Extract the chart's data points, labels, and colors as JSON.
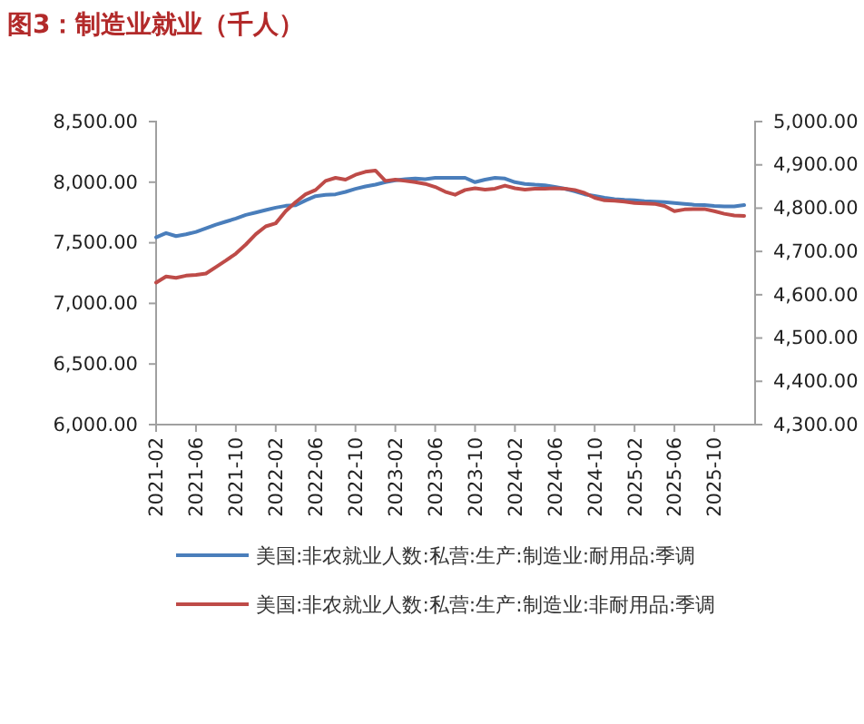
{
  "chart_data": {
    "type": "line",
    "title": "图3：制造业就业（千人）",
    "categories": [
      "2021-02",
      null,
      null,
      null,
      "2021-06",
      null,
      null,
      null,
      "2021-10",
      null,
      null,
      null,
      "2022-02",
      null,
      null,
      null,
      "2022-06",
      null,
      null,
      null,
      "2022-10",
      null,
      null,
      null,
      "2023-02",
      null,
      null,
      null,
      "2023-06",
      null,
      null,
      null,
      "2023-10",
      null,
      null,
      null,
      "2024-02",
      null,
      null,
      null,
      "2024-06",
      null,
      null,
      null,
      "2024-10",
      null,
      null,
      null,
      "2025-02",
      null,
      null,
      null,
      "2025-06",
      null,
      null,
      null,
      "2025-10",
      null,
      null,
      null
    ],
    "series": [
      {
        "name": "美国:非农就业人数:私营:生产:制造业:耐用品:季调",
        "color": "#4a7ebb",
        "values": [
          7545,
          7580,
          7555,
          7570,
          7590,
          7620,
          7650,
          7675,
          7700,
          7730,
          7750,
          7770,
          7790,
          7805,
          7810,
          7850,
          7885,
          7895,
          7900,
          7920,
          7945,
          7965,
          7980,
          8000,
          8015,
          8025,
          8030,
          8025,
          8036,
          8036,
          8036,
          8036,
          8000,
          8021,
          8036,
          8030,
          8000,
          7986,
          7979,
          7975,
          7961,
          7946,
          7925,
          7900,
          7886,
          7871,
          7861,
          7854,
          7850,
          7843,
          7839,
          7836,
          7829,
          7821,
          7814,
          7811,
          7804,
          7800,
          7800,
          7811
        ]
      },
      {
        "name": "美国:非农就业人数:私营:生产:制造业:非耐用品:季调",
        "color": "#be4b48",
        "axis": "y2",
        "values": [
          4628,
          4642,
          4639,
          4644,
          4646,
          4649,
          4664,
          4679,
          4695,
          4716,
          4740,
          4758,
          4765,
          4793,
          4814,
          4832,
          4842,
          4863,
          4870,
          4866,
          4877,
          4884,
          4887,
          4863,
          4866,
          4863,
          4860,
          4856,
          4849,
          4838,
          4831,
          4842,
          4846,
          4843,
          4845,
          4852,
          4846,
          4843,
          4845,
          4845,
          4846,
          4845,
          4842,
          4835,
          4824,
          4818,
          4817,
          4815,
          4812,
          4811,
          4810,
          4805,
          4793,
          4797,
          4798,
          4798,
          4793,
          4787,
          4783,
          4782
        ]
      }
    ],
    "ylim": [
      6000,
      8500
    ],
    "yticks": [
      {
        "value": 6000,
        "label": "6,000.00"
      },
      {
        "value": 6500,
        "label": "6,500.00"
      },
      {
        "value": 7000,
        "label": "7,000.00"
      },
      {
        "value": 7500,
        "label": "7,500.00"
      },
      {
        "value": 8000,
        "label": "8,000.00"
      },
      {
        "value": 8500,
        "label": "8,500.00"
      }
    ],
    "y2lim": [
      4300,
      5000
    ],
    "y2ticks": [
      {
        "value": 4300,
        "label": "4,300.00"
      },
      {
        "value": 4400,
        "label": "4,400.00"
      },
      {
        "value": 4500,
        "label": "4,500.00"
      },
      {
        "value": 4600,
        "label": "4,600.00"
      },
      {
        "value": 4700,
        "label": "4,700.00"
      },
      {
        "value": 4800,
        "label": "4,800.00"
      },
      {
        "value": 4900,
        "label": "4,900.00"
      },
      {
        "value": 5000,
        "label": "5,000.00"
      }
    ],
    "legend": "bottom",
    "grid": false,
    "line_style": "solid",
    "marker": "none"
  }
}
